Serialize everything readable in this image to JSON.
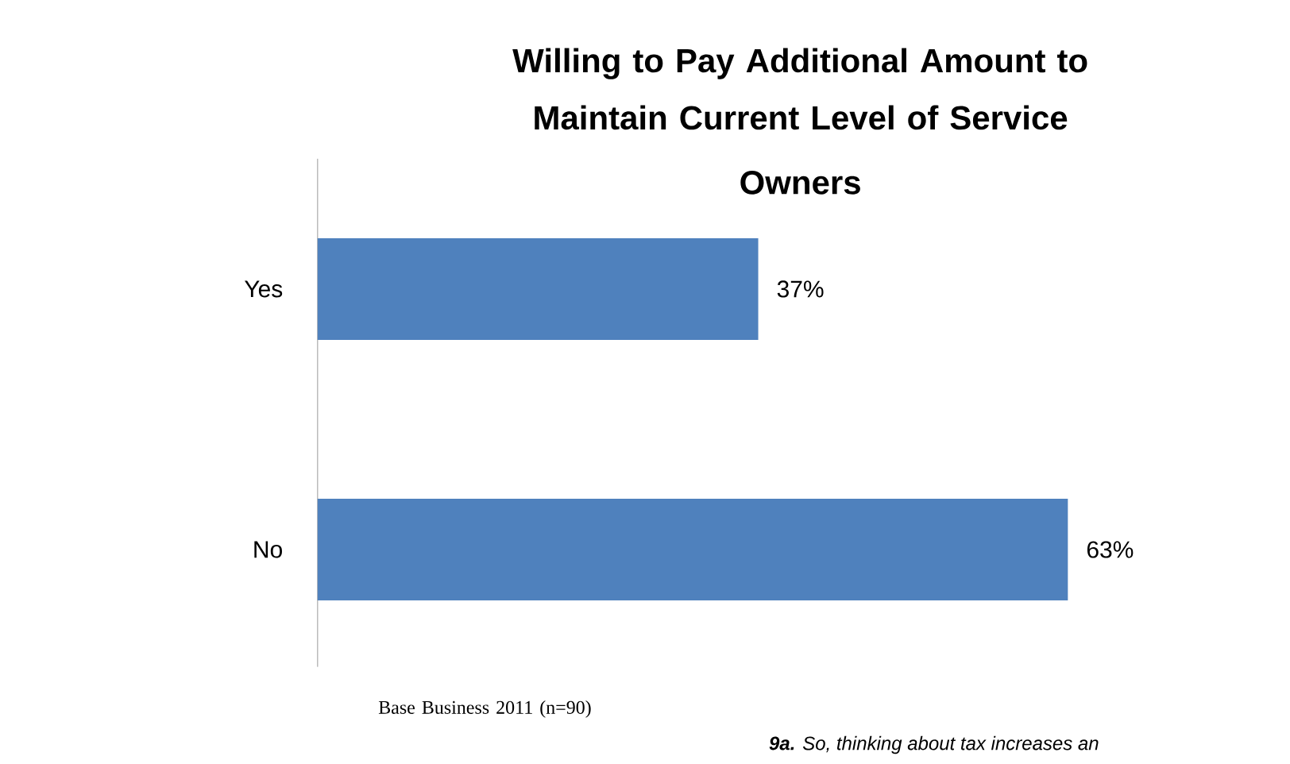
{
  "chart_data": {
    "type": "bar",
    "orientation": "horizontal",
    "title": "Willing to Pay Additional  Amount to Maintain Current Level of Service",
    "subtitle": "Owners",
    "categories": [
      "Yes",
      "No"
    ],
    "values": [
      37,
      63
    ],
    "color": "#4f81bd",
    "value_labels": [
      "37%",
      "63%"
    ],
    "annotations": [
      "Base Business 2011 (n=90)",
      "**9a.** So, thinking about tax increases an"
    ]
  }
}
